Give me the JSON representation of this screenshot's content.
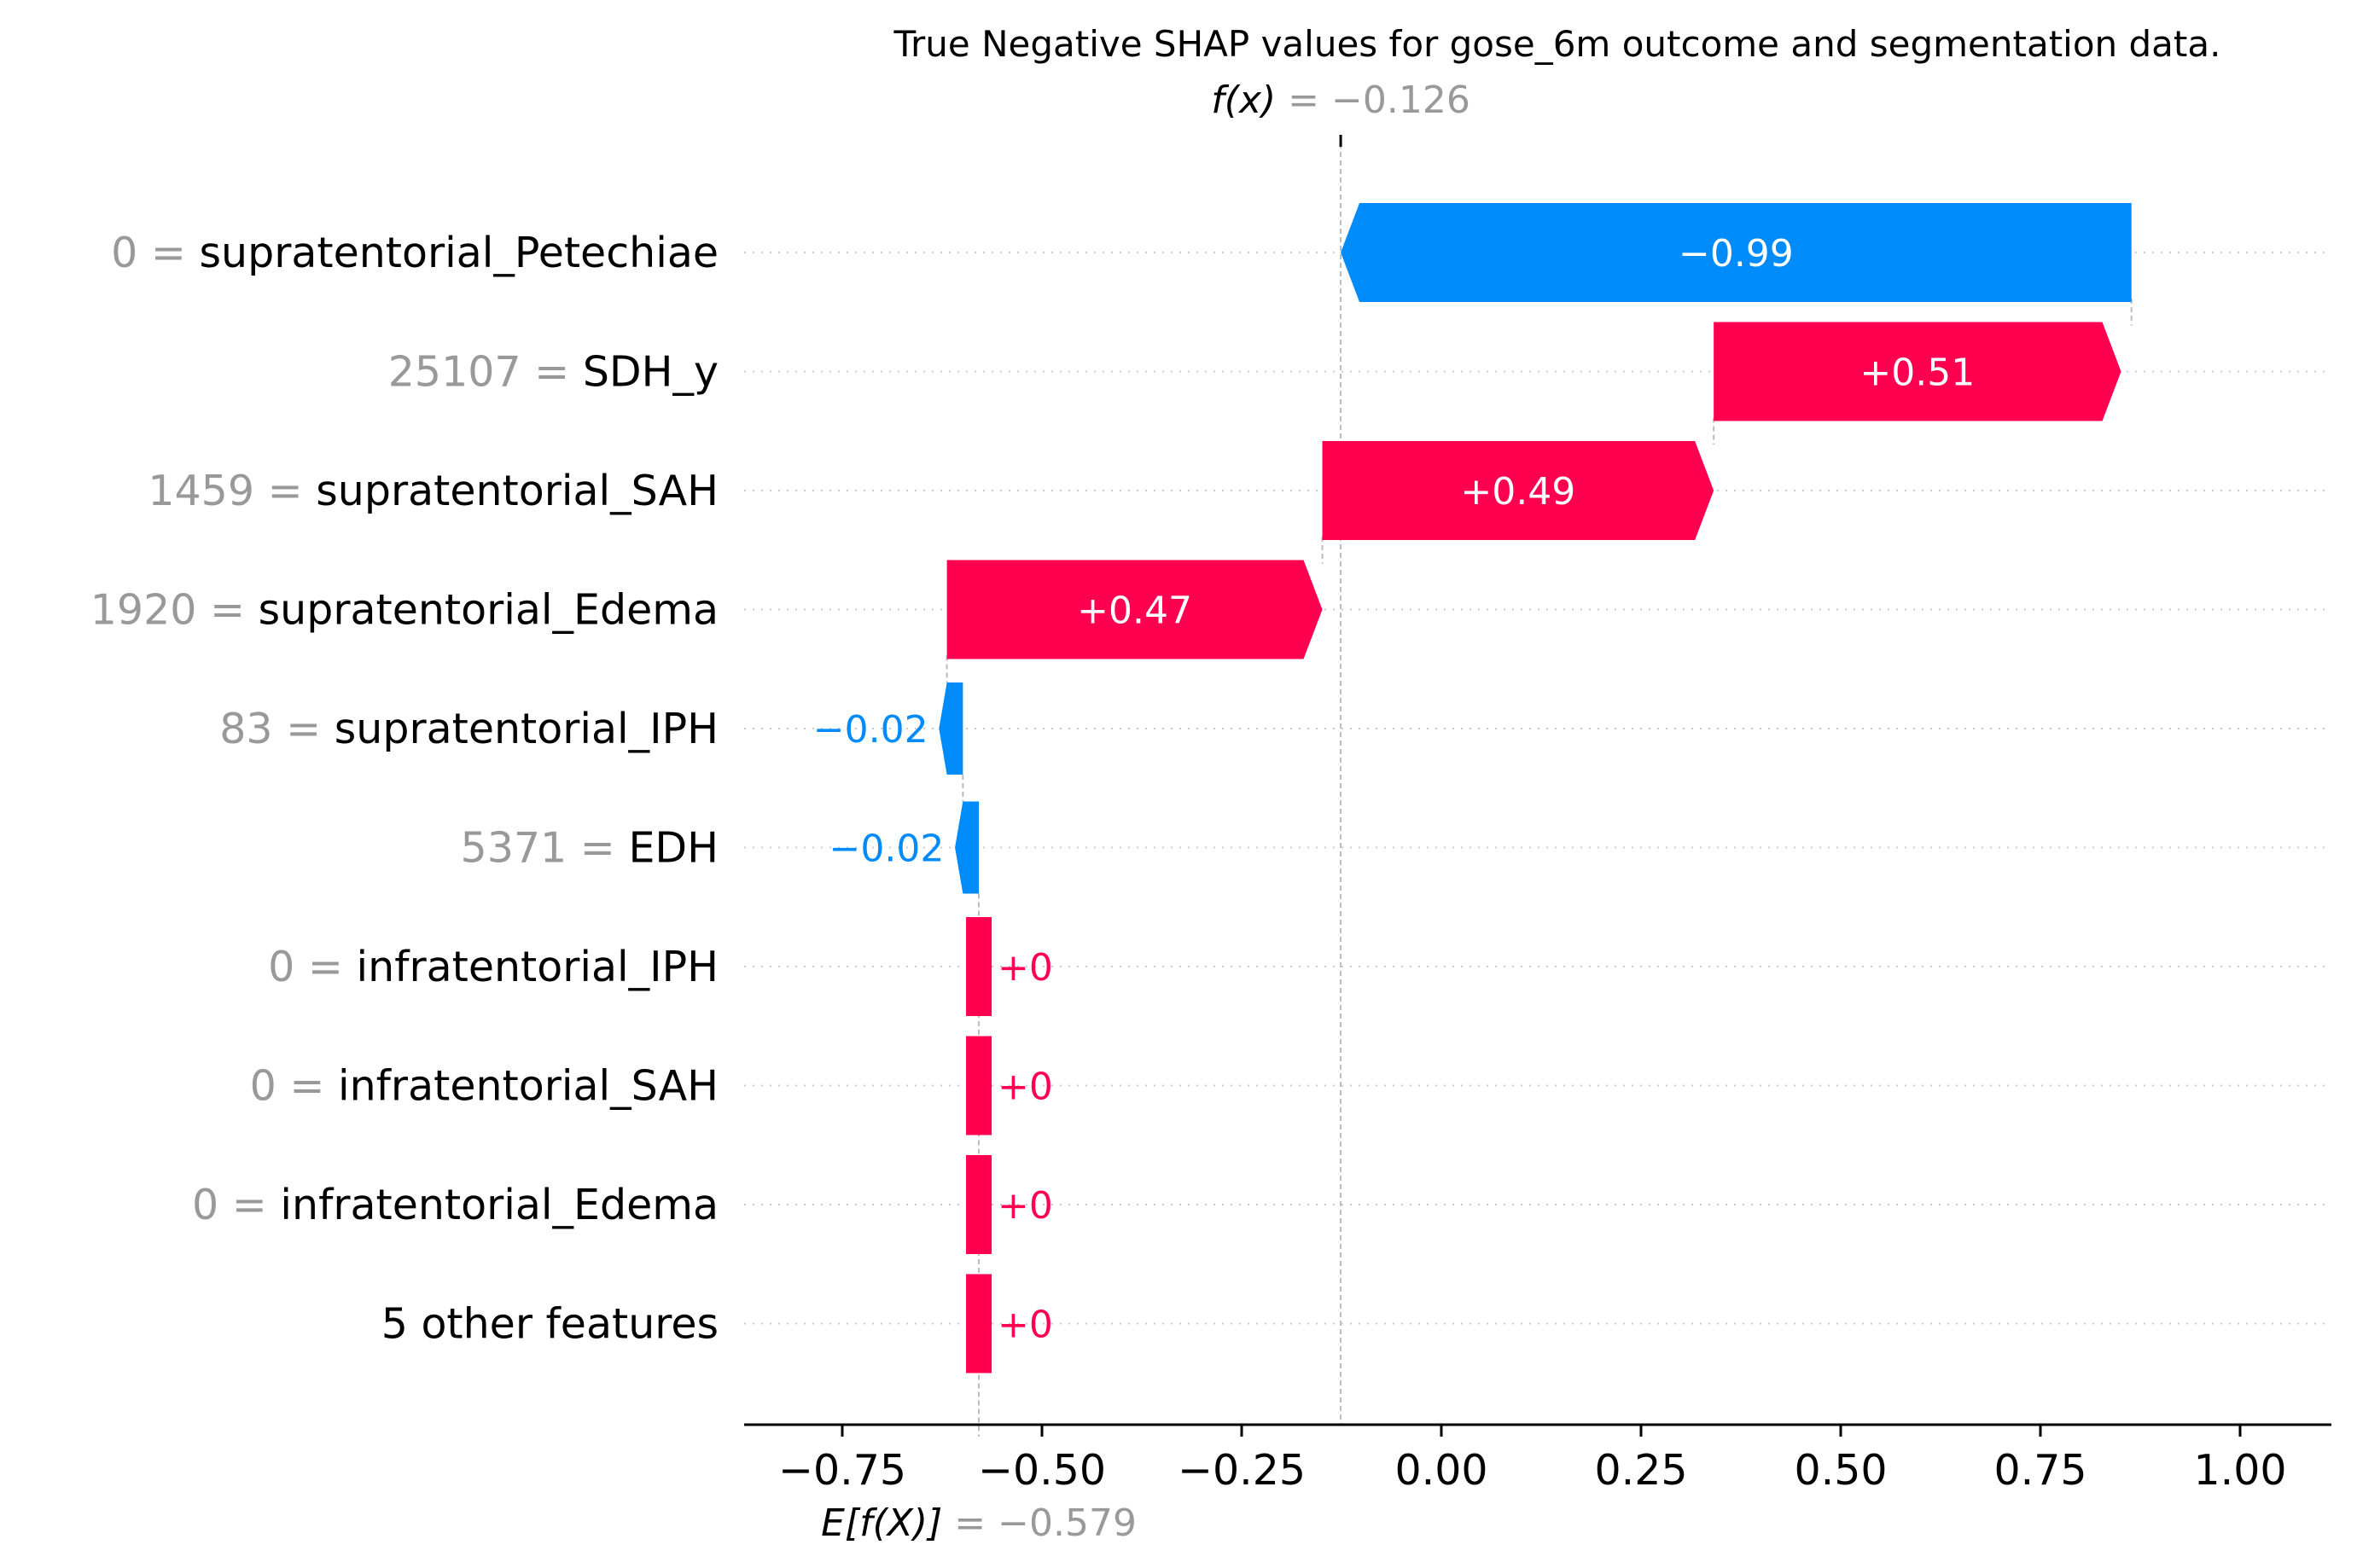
{
  "chart_data": {
    "type": "waterfall",
    "title": "True Negative SHAP values for gose_6m outcome and segmentation data.",
    "xlim": [
      -0.88,
      1.12
    ],
    "xticks": [
      -0.75,
      -0.5,
      -0.25,
      0.0,
      0.25,
      0.5,
      0.75,
      1.0
    ],
    "xtick_labels": [
      "−0.75",
      "−0.50",
      "−0.25",
      "0.00",
      "0.25",
      "0.50",
      "0.75",
      "1.00"
    ],
    "grid": "horizontal-dotted",
    "fx": {
      "label": "f(x)",
      "equals": " = ",
      "value_text": "−0.126",
      "value": -0.126
    },
    "base": {
      "label": "E[f(X)]",
      "equals": " = ",
      "value_text": "−0.579",
      "value": -0.579
    },
    "features": [
      {
        "value_text": "0",
        "name": "supratentorial_Petechiae",
        "shap": -0.99,
        "label": "−0.99"
      },
      {
        "value_text": "25107",
        "name": "SDH_y",
        "shap": 0.51,
        "label": "+0.51"
      },
      {
        "value_text": "1459",
        "name": "supratentorial_SAH",
        "shap": 0.49,
        "label": "+0.49"
      },
      {
        "value_text": "1920",
        "name": "supratentorial_Edema",
        "shap": 0.47,
        "label": "+0.47"
      },
      {
        "value_text": "83",
        "name": "supratentorial_IPH",
        "shap": -0.02,
        "label": "−0.02"
      },
      {
        "value_text": "5371",
        "name": "EDH",
        "shap": -0.02,
        "label": "−0.02"
      },
      {
        "value_text": "0",
        "name": "infratentorial_IPH",
        "shap": 0.0,
        "label": "+0"
      },
      {
        "value_text": "0",
        "name": "infratentorial_SAH",
        "shap": 0.0,
        "label": "+0"
      },
      {
        "value_text": "0",
        "name": "infratentorial_Edema",
        "shap": 0.0,
        "label": "+0"
      },
      {
        "value_text": "",
        "name": "5 other features",
        "shap": 0.0,
        "label": "+0"
      }
    ],
    "colors": {
      "positive": "#ff0051",
      "negative": "#008bfb",
      "value_gray": "#999999",
      "grid": "#cccccc"
    }
  }
}
